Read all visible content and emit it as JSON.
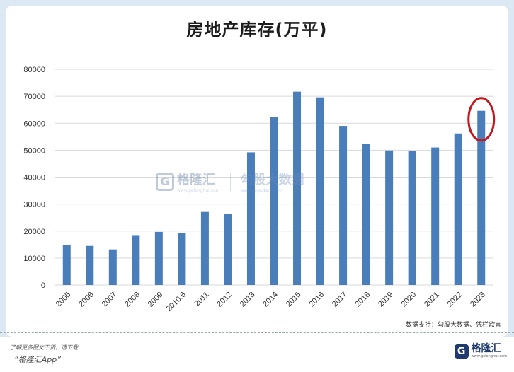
{
  "title": "房地产库存(万平)",
  "source_note": "数据支持：勾股大数据、凭栏欧言",
  "watermark": {
    "logo_letter": "G",
    "brand": "格隆汇",
    "brand_url": "www.gelonghui.com",
    "partner": "勾股大数据",
    "partner_url": "www.gogudata.com"
  },
  "footer": {
    "promo_line1": "了解更多图文干货，请下载",
    "promo_line2": "“格隆汇App”",
    "logo_letter": "G",
    "logo_name": "格隆汇",
    "logo_url": "www.gelonghui.com"
  },
  "colors": {
    "bar": "#4a7ebb",
    "highlight": "#c4161c",
    "grid": "#d9d9d9"
  },
  "chart_data": {
    "type": "bar",
    "title": "房地产库存(万平)",
    "categories": [
      "2005",
      "2006",
      "2007",
      "2008",
      "2009",
      "2010.6",
      "2011",
      "2012",
      "2013",
      "2014",
      "2015",
      "2016",
      "2017",
      "2018",
      "2019",
      "2020",
      "2021",
      "2022",
      "2023"
    ],
    "values": [
      14800,
      14500,
      13200,
      18500,
      19700,
      19200,
      27100,
      26500,
      49200,
      62200,
      71700,
      69600,
      59000,
      52400,
      49900,
      49800,
      51000,
      56200,
      64600
    ],
    "ylim": [
      0,
      80000
    ],
    "yticks": [
      "0",
      "10000",
      "20000",
      "30000",
      "40000",
      "50000",
      "60000",
      "70000",
      "80000"
    ],
    "highlighted_category": "2023",
    "xlabel": "",
    "ylabel": "",
    "grid": true
  }
}
